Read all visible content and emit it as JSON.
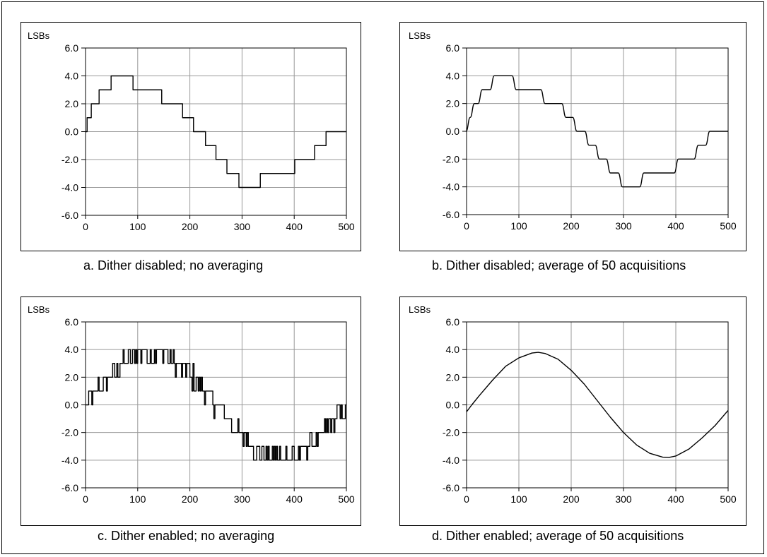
{
  "chart_data": [
    {
      "id": "a",
      "type": "line",
      "caption": "a.  Dither disabled; no averaging",
      "ylabel": "LSBs",
      "xlim": [
        0,
        500
      ],
      "ylim": [
        -6,
        6
      ],
      "xticks": [
        0,
        100,
        200,
        300,
        400,
        500
      ],
      "xtick_labels": [
        "0",
        "100",
        "200",
        "300",
        "400",
        "500"
      ],
      "yticks": [
        6,
        4,
        2,
        0,
        -2,
        -4,
        -6
      ],
      "ytick_labels": [
        "6.0",
        "4.0",
        "2.0",
        "0.0",
        "-2.0",
        "-4.0",
        "-6.0"
      ],
      "grid": true,
      "series": [
        {
          "style": "step",
          "x": [
            0,
            3,
            11,
            26,
            49,
            91,
            146,
            186,
            207,
            230,
            250,
            271,
            294,
            335,
            401,
            439,
            461,
            482,
            500
          ],
          "y": [
            0,
            1,
            2,
            3,
            4,
            3,
            2,
            1,
            0,
            -1,
            -2,
            -3,
            -4,
            -3,
            -2,
            -1,
            0,
            0,
            0
          ]
        }
      ]
    },
    {
      "id": "b",
      "type": "line",
      "caption": "b.  Dither disabled; average of 50 acquisitions",
      "ylabel": "LSBs",
      "xlim": [
        0,
        500
      ],
      "ylim": [
        -6,
        6
      ],
      "xticks": [
        0,
        100,
        200,
        300,
        400,
        500
      ],
      "xtick_labels": [
        "0",
        "100",
        "200",
        "300",
        "400",
        "500"
      ],
      "yticks": [
        6,
        4,
        2,
        0,
        -2,
        -4,
        -6
      ],
      "ytick_labels": [
        "6.0",
        "4.0",
        "2.0",
        "0.0",
        "-2.0",
        "-4.0",
        "-6.0"
      ],
      "grid": true,
      "series": [
        {
          "style": "smoothstep",
          "x": [
            0,
            3,
            11,
            26,
            49,
            91,
            146,
            186,
            207,
            230,
            250,
            271,
            294,
            335,
            401,
            439,
            461,
            482,
            500
          ],
          "y": [
            0,
            1,
            2,
            3,
            4,
            3,
            2,
            1,
            0,
            -1,
            -2,
            -3,
            -4,
            -3,
            -2,
            -1,
            0,
            0,
            0
          ]
        }
      ]
    },
    {
      "id": "c",
      "type": "line",
      "caption": "c.  Dither enabled; no averaging",
      "ylabel": "LSBs",
      "xlim": [
        0,
        500
      ],
      "ylim": [
        -6,
        6
      ],
      "xticks": [
        0,
        100,
        200,
        300,
        400,
        500
      ],
      "xtick_labels": [
        "0",
        "100",
        "200",
        "300",
        "400",
        "500"
      ],
      "yticks": [
        6,
        4,
        2,
        0,
        -2,
        -4,
        -6
      ],
      "ytick_labels": [
        "6.0",
        "4.0",
        "2.0",
        "0.0",
        "-2.0",
        "-4.0",
        "-6.0"
      ],
      "grid": true,
      "series": [
        {
          "style": "dither",
          "x": [
            0,
            500
          ],
          "amplitude": 3.8,
          "phase": 0,
          "period": 500
        }
      ]
    },
    {
      "id": "d",
      "type": "line",
      "caption": "d.  Dither enabled; average of 50 acquisitions",
      "ylabel": "LSBs",
      "xlim": [
        0,
        500
      ],
      "ylim": [
        -6,
        6
      ],
      "xticks": [
        0,
        100,
        200,
        300,
        400,
        500
      ],
      "xtick_labels": [
        "0",
        "100",
        "200",
        "300",
        "400",
        "500"
      ],
      "yticks": [
        6,
        4,
        2,
        0,
        -2,
        -4,
        -6
      ],
      "ytick_labels": [
        "6.0",
        "4.0",
        "2.0",
        "0.0",
        "-2.0",
        "-4.0",
        "-6.0"
      ],
      "grid": true,
      "series": [
        {
          "style": "smooth",
          "x": [
            0,
            10,
            25,
            50,
            75,
            100,
            125,
            137,
            150,
            175,
            200,
            225,
            250,
            275,
            300,
            325,
            350,
            375,
            387,
            400,
            425,
            450,
            475,
            500
          ],
          "y": [
            -0.5,
            0.0,
            0.7,
            1.8,
            2.8,
            3.4,
            3.75,
            3.8,
            3.72,
            3.3,
            2.5,
            1.5,
            0.3,
            -0.9,
            -2.0,
            -2.9,
            -3.5,
            -3.78,
            -3.8,
            -3.7,
            -3.2,
            -2.4,
            -1.5,
            -0.4
          ]
        }
      ]
    }
  ]
}
